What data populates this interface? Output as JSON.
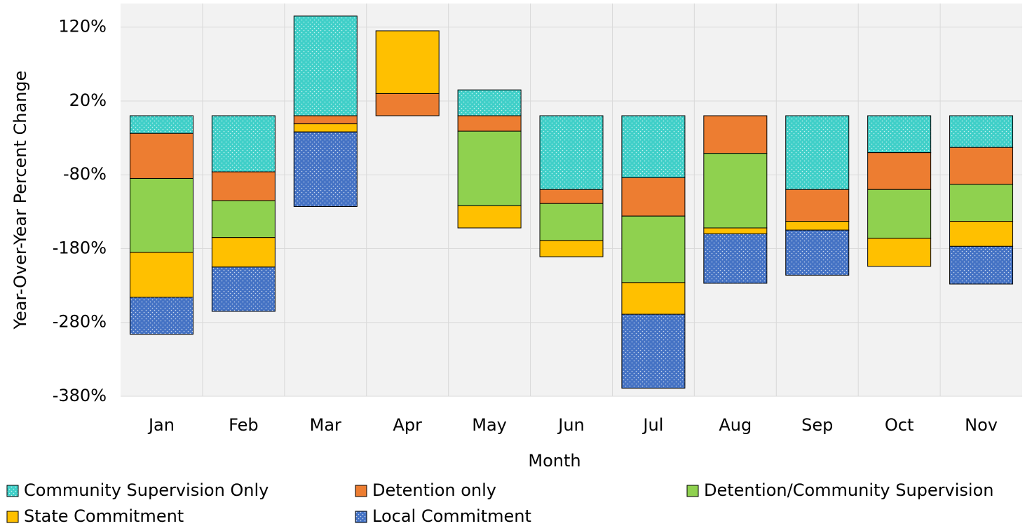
{
  "chart_data": {
    "type": "stacked-bar",
    "x_label": "Month",
    "y_label": "Year-Over-Year Percent Change",
    "categories": [
      "Jan",
      "Feb",
      "Mar",
      "Apr",
      "May",
      "Jun",
      "Jul",
      "Aug",
      "Sep",
      "Oct",
      "Nov"
    ],
    "series": [
      {
        "name": "Community Supervision Only",
        "color": "#3fcfc8",
        "pattern": "dots",
        "values": [
          -24,
          -76,
          135,
          0,
          35,
          -100,
          -84,
          0,
          -100,
          -50,
          -43
        ]
      },
      {
        "name": "Detention only",
        "color": "#ed7d31",
        "values": [
          -61,
          -39,
          -11,
          30,
          -21,
          -19,
          -52,
          -51,
          -43,
          -50,
          -50
        ]
      },
      {
        "name": "Detention/Community Supervision",
        "color": "#8fd14f",
        "values": [
          -100,
          -50,
          0,
          0,
          -101,
          -50,
          -90,
          -101,
          0,
          -66,
          -50
        ]
      },
      {
        "name": "State Commitment",
        "color": "#ffc000",
        "values": [
          -61,
          -40,
          -11,
          85,
          -30,
          -22,
          -43,
          -8,
          -12,
          -38,
          -34
        ]
      },
      {
        "name": "Local Commitment",
        "color": "#4472c4",
        "pattern": "dots",
        "values": [
          -50,
          -60,
          -101,
          0,
          0,
          0,
          -100,
          -67,
          -61,
          0,
          -51
        ]
      }
    ],
    "ylim": [
      -380,
      152
    ],
    "yticks": [
      {
        "value": 120,
        "label": "120%"
      },
      {
        "value": 20,
        "label": "20%"
      },
      {
        "value": -80,
        "label": "-80%"
      },
      {
        "value": -180,
        "label": "-180%"
      },
      {
        "value": -280,
        "label": "-280%"
      },
      {
        "value": -380,
        "label": "-380%"
      }
    ],
    "grid": true,
    "legend": "bottom"
  }
}
